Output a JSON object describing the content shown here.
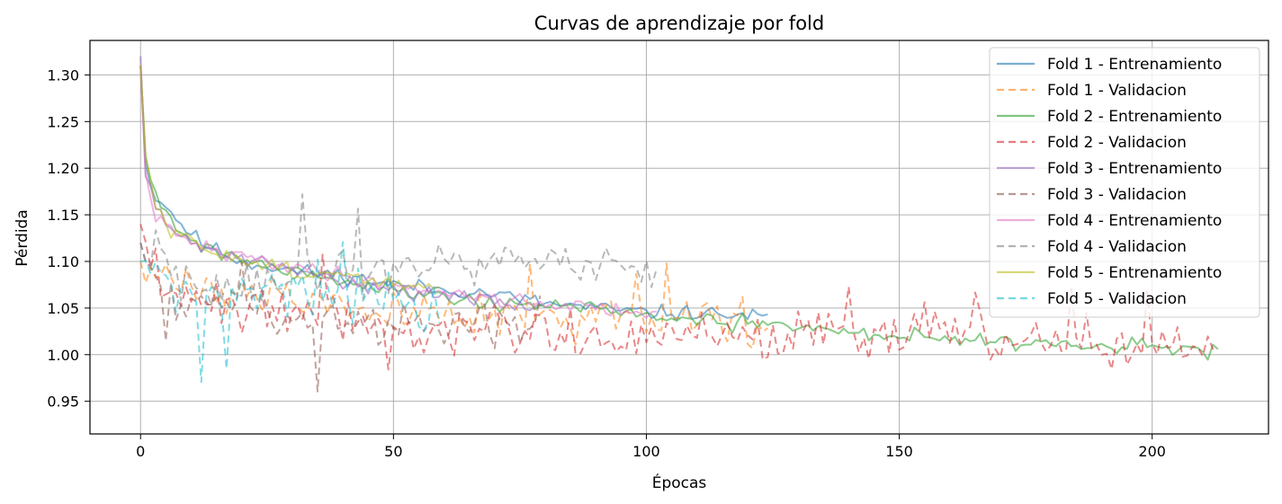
{
  "chart_data": {
    "type": "line",
    "title": "Curvas de aprendizaje por fold",
    "xlabel": "Épocas",
    "ylabel": "Pérdida",
    "xlim": [
      -10,
      223
    ],
    "ylim": [
      0.915,
      1.337
    ],
    "xticks": [
      0,
      50,
      100,
      150,
      200
    ],
    "yticks": [
      0.95,
      1.0,
      1.05,
      1.1,
      1.15,
      1.2,
      1.25,
      1.3
    ],
    "grid": true,
    "legend_position": "top-right",
    "series": [
      {
        "name": "Fold 1 - Entrenamiento",
        "color": "#1f77b4",
        "style": "solid",
        "length": 125,
        "anchors": [
          [
            0,
            1.31
          ],
          [
            1,
            1.21
          ],
          [
            2,
            1.18
          ],
          [
            3,
            1.17
          ],
          [
            5,
            1.16
          ],
          [
            8,
            1.14
          ],
          [
            12,
            1.12
          ],
          [
            20,
            1.1
          ],
          [
            30,
            1.09
          ],
          [
            40,
            1.085
          ],
          [
            50,
            1.075
          ],
          [
            60,
            1.07
          ],
          [
            70,
            1.065
          ],
          [
            80,
            1.055
          ],
          [
            90,
            1.05
          ],
          [
            100,
            1.045
          ],
          [
            110,
            1.045
          ],
          [
            124,
            1.04
          ]
        ],
        "noise": 0.012,
        "seed": 11
      },
      {
        "name": "Fold 1 - Validacion",
        "color": "#ff7f0e",
        "style": "dashed",
        "length": 125,
        "anchors": [
          [
            0,
            1.1
          ],
          [
            10,
            1.07
          ],
          [
            30,
            1.06
          ],
          [
            60,
            1.04
          ],
          [
            90,
            1.04
          ],
          [
            124,
            1.03
          ]
        ],
        "noise": 0.035,
        "seed": 12
      },
      {
        "name": "Fold 2 - Entrenamiento",
        "color": "#2ca02c",
        "style": "solid",
        "length": 214,
        "anchors": [
          [
            0,
            1.31
          ],
          [
            1,
            1.22
          ],
          [
            2,
            1.19
          ],
          [
            4,
            1.16
          ],
          [
            8,
            1.13
          ],
          [
            15,
            1.11
          ],
          [
            30,
            1.09
          ],
          [
            50,
            1.07
          ],
          [
            70,
            1.055
          ],
          [
            90,
            1.05
          ],
          [
            110,
            1.035
          ],
          [
            130,
            1.03
          ],
          [
            150,
            1.02
          ],
          [
            170,
            1.015
          ],
          [
            190,
            1.01
          ],
          [
            213,
            1.005
          ]
        ],
        "noise": 0.012,
        "seed": 21
      },
      {
        "name": "Fold 2 - Validacion",
        "color": "#d62728",
        "style": "dashed",
        "length": 214,
        "anchors": [
          [
            0,
            1.14
          ],
          [
            5,
            1.06
          ],
          [
            30,
            1.05
          ],
          [
            60,
            1.03
          ],
          [
            100,
            1.02
          ],
          [
            150,
            1.02
          ],
          [
            213,
            1.01
          ]
        ],
        "noise": 0.04,
        "seed": 22
      },
      {
        "name": "Fold 3 - Entrenamiento",
        "color": "#9467bd",
        "style": "solid",
        "length": 80,
        "anchors": [
          [
            0,
            1.32
          ],
          [
            1,
            1.2
          ],
          [
            3,
            1.16
          ],
          [
            6,
            1.13
          ],
          [
            15,
            1.11
          ],
          [
            30,
            1.09
          ],
          [
            50,
            1.07
          ],
          [
            65,
            1.06
          ],
          [
            79,
            1.05
          ]
        ],
        "noise": 0.012,
        "seed": 31
      },
      {
        "name": "Fold 3 - Validacion",
        "color": "#8c564b",
        "style": "dashed",
        "length": 80,
        "anchors": [
          [
            0,
            1.12
          ],
          [
            5,
            1.06
          ],
          [
            20,
            1.05
          ],
          [
            40,
            1.04
          ],
          [
            60,
            1.03
          ],
          [
            79,
            1.03
          ]
        ],
        "noise": 0.04,
        "seed": 32
      },
      {
        "name": "Fold 4 - Entrenamiento",
        "color": "#e377c2",
        "style": "solid",
        "length": 103,
        "anchors": [
          [
            0,
            1.31
          ],
          [
            1,
            1.19
          ],
          [
            3,
            1.15
          ],
          [
            6,
            1.13
          ],
          [
            15,
            1.11
          ],
          [
            30,
            1.095
          ],
          [
            50,
            1.075
          ],
          [
            70,
            1.06
          ],
          [
            90,
            1.05
          ],
          [
            102,
            1.045
          ]
        ],
        "noise": 0.012,
        "seed": 41
      },
      {
        "name": "Fold 4 - Validacion",
        "color": "#7f7f7f",
        "style": "dashed",
        "length": 103,
        "anchors": [
          [
            0,
            1.12
          ],
          [
            10,
            1.07
          ],
          [
            25,
            1.08
          ],
          [
            50,
            1.09
          ],
          [
            75,
            1.1
          ],
          [
            102,
            1.09
          ]
        ],
        "noise": 0.035,
        "seed": 42
      },
      {
        "name": "Fold 5 - Entrenamiento",
        "color": "#bcbd22",
        "style": "solid",
        "length": 60,
        "anchors": [
          [
            0,
            1.31
          ],
          [
            1,
            1.21
          ],
          [
            3,
            1.16
          ],
          [
            6,
            1.13
          ],
          [
            15,
            1.11
          ],
          [
            30,
            1.09
          ],
          [
            45,
            1.08
          ],
          [
            59,
            1.07
          ]
        ],
        "noise": 0.012,
        "seed": 51
      },
      {
        "name": "Fold 5 - Validacion",
        "color": "#17becf",
        "style": "dashed",
        "length": 60,
        "anchors": [
          [
            0,
            1.1
          ],
          [
            10,
            1.06
          ],
          [
            25,
            1.07
          ],
          [
            45,
            1.07
          ],
          [
            59,
            1.04
          ]
        ],
        "noise": 0.04,
        "seed": 52
      }
    ]
  }
}
